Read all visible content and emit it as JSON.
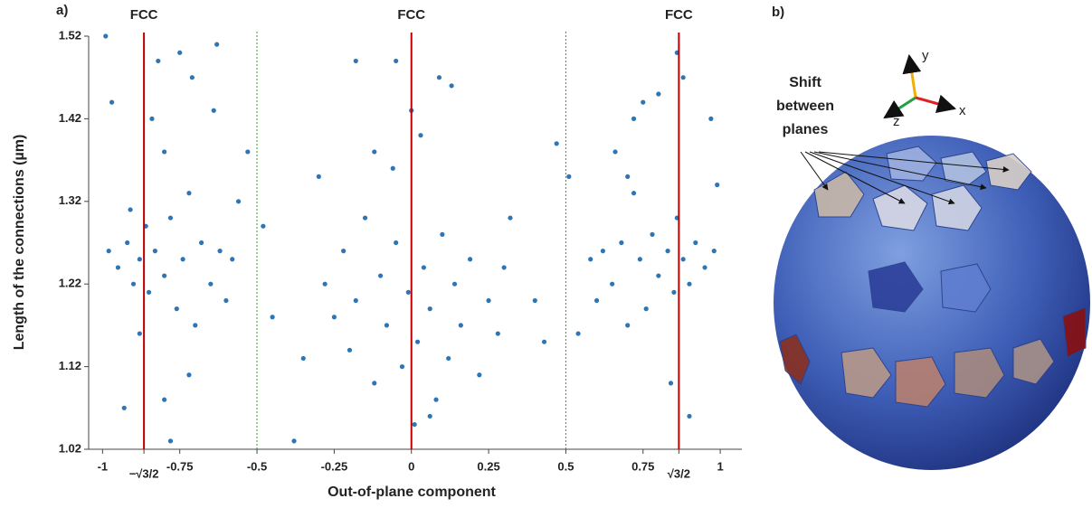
{
  "chart_data": {
    "type": "scatter",
    "panel_label": "a)",
    "xlabel": "Out-of-plane component",
    "ylabel": "Length of the connections (µm)",
    "xlim": [
      -1.045,
      1.07
    ],
    "ylim": [
      1.02,
      1.52
    ],
    "xticks": [
      -1,
      {
        "value": -0.866,
        "label": "−√3/2",
        "color": "#c00000"
      },
      -0.75,
      -0.5,
      -0.25,
      0,
      0.25,
      0.5,
      0.75,
      {
        "value": 0.866,
        "label": "√3/2",
        "color": "#c00000"
      },
      1
    ],
    "yticks": [
      1.02,
      1.12,
      1.22,
      1.32,
      1.42,
      1.52
    ],
    "color": "#2e75b6",
    "reference_lines": [
      {
        "x": -0.866,
        "label": "FCC",
        "color": "#c00000"
      },
      {
        "x": 0,
        "label": "FCC",
        "color": "#c00000"
      },
      {
        "x": 0.866,
        "label": "FCC",
        "color": "#c00000"
      }
    ],
    "dividers": [
      {
        "x": -0.5,
        "color": "#2ca02c"
      },
      {
        "x": 0.5,
        "color": "#2ca02c"
      }
    ],
    "x": [
      -0.98,
      -0.95,
      -0.92,
      -0.9,
      -0.88,
      -0.86,
      -0.85,
      -0.83,
      -0.8,
      -0.78,
      -0.76,
      -0.74,
      -0.72,
      -0.7,
      -0.68,
      -0.65,
      -0.62,
      -0.6,
      -0.58,
      -0.97,
      -0.99,
      -0.84,
      -0.8,
      -0.82,
      -0.75,
      -0.71,
      -0.63,
      -0.64,
      -0.93,
      -0.8,
      -0.72,
      -0.78,
      -0.91,
      -0.88,
      -0.53,
      -0.56,
      -0.28,
      -0.25,
      -0.22,
      -0.2,
      -0.18,
      -0.15,
      -0.12,
      -0.1,
      -0.08,
      -0.05,
      -0.03,
      -0.01,
      0.02,
      0.04,
      0.06,
      0.08,
      0.1,
      0.12,
      0.14,
      0.16,
      0.19,
      0.22,
      0.25,
      0.28,
      0.3,
      -0.06,
      0.0,
      0.03,
      -0.12,
      0.13,
      -0.18,
      -0.05,
      0.09,
      -0.35,
      -0.38,
      0.01,
      0.06,
      -0.45,
      -0.48,
      0.4,
      0.43,
      0.47,
      0.32,
      -0.3,
      0.98,
      0.95,
      0.92,
      0.9,
      0.88,
      0.86,
      0.85,
      0.83,
      0.8,
      0.78,
      0.76,
      0.74,
      0.72,
      0.7,
      0.68,
      0.65,
      0.62,
      0.6,
      0.58,
      0.97,
      0.88,
      0.86,
      0.8,
      0.75,
      0.66,
      0.72,
      0.84,
      0.9,
      0.51,
      0.54,
      0.99,
      0.7
    ],
    "values": [
      1.26,
      1.24,
      1.27,
      1.22,
      1.25,
      1.29,
      1.21,
      1.26,
      1.23,
      1.3,
      1.19,
      1.25,
      1.33,
      1.17,
      1.27,
      1.22,
      1.26,
      1.2,
      1.25,
      1.44,
      1.52,
      1.42,
      1.38,
      1.49,
      1.5,
      1.47,
      1.51,
      1.43,
      1.07,
      1.08,
      1.11,
      1.03,
      1.31,
      1.16,
      1.38,
      1.32,
      1.22,
      1.18,
      1.26,
      1.14,
      1.2,
      1.3,
      1.1,
      1.23,
      1.17,
      1.27,
      1.12,
      1.21,
      1.15,
      1.24,
      1.19,
      1.08,
      1.28,
      1.13,
      1.22,
      1.17,
      1.25,
      1.11,
      1.2,
      1.16,
      1.24,
      1.36,
      1.43,
      1.4,
      1.38,
      1.46,
      1.49,
      1.49,
      1.47,
      1.13,
      1.03,
      1.05,
      1.06,
      1.18,
      1.29,
      1.2,
      1.15,
      1.39,
      1.3,
      1.35,
      1.26,
      1.24,
      1.27,
      1.22,
      1.25,
      1.3,
      1.21,
      1.26,
      1.23,
      1.28,
      1.19,
      1.25,
      1.33,
      1.17,
      1.27,
      1.22,
      1.26,
      1.2,
      1.25,
      1.42,
      1.47,
      1.5,
      1.45,
      1.44,
      1.38,
      1.42,
      1.1,
      1.06,
      1.35,
      1.16,
      1.34,
      1.35
    ]
  },
  "panel_b": {
    "label": "b)",
    "axes": {
      "y": "y",
      "x": "x",
      "z": "z"
    },
    "annotation": [
      "Shift",
      "between",
      "planes"
    ]
  }
}
